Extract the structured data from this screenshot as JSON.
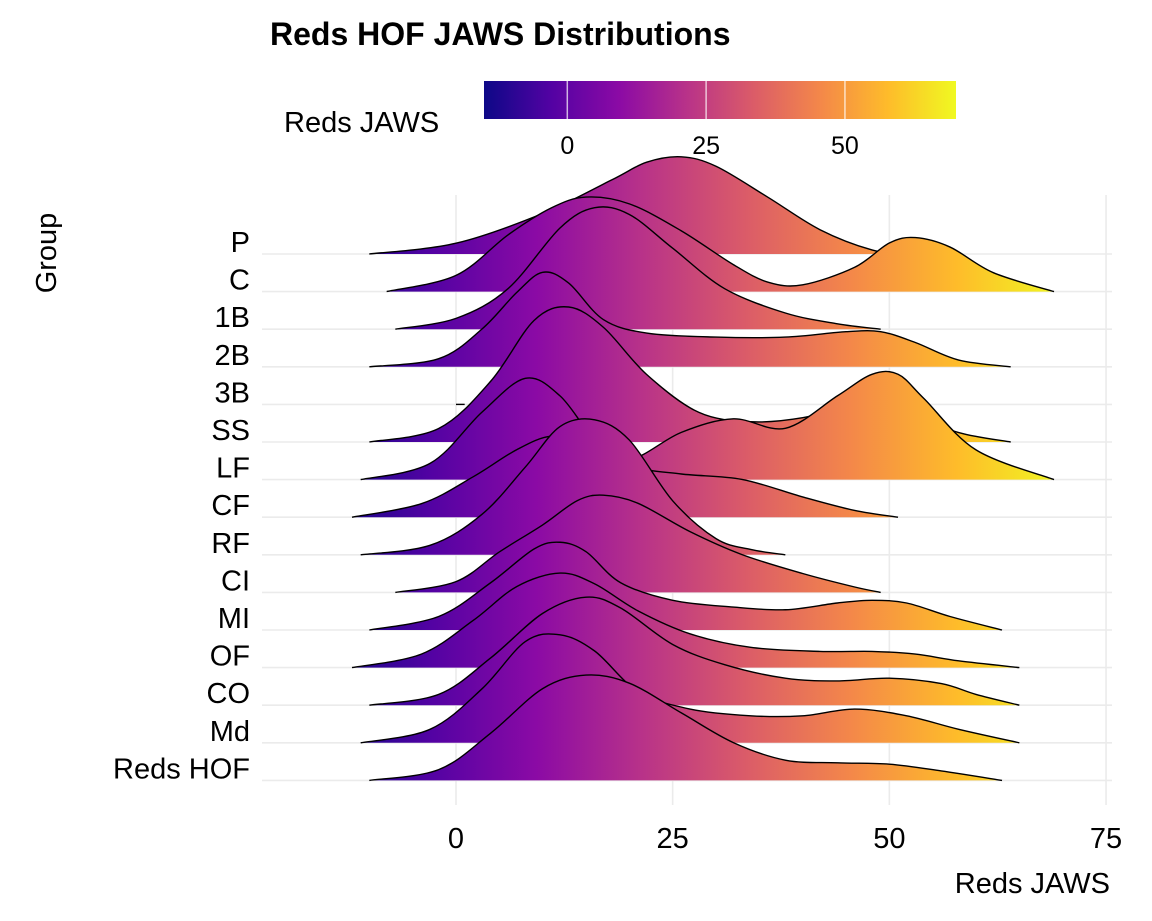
{
  "chart_data": {
    "type": "ridgeline",
    "title": "Reds HOF JAWS Distributions",
    "xlabel": "Reds JAWS",
    "ylabel": "Group",
    "xlim": [
      -23,
      75
    ],
    "x_ticks": [
      0,
      25,
      50,
      75
    ],
    "grid": true,
    "legend": {
      "title": "Reds JAWS",
      "placement": "top",
      "ticks": [
        0,
        25,
        50
      ],
      "range": [
        -15,
        70
      ],
      "colormap": "plasma",
      "colors": [
        "#0d0887",
        "#5302a3",
        "#8b0aa5",
        "#b83289",
        "#db5c68",
        "#f48849",
        "#febc2a",
        "#f0f921"
      ]
    },
    "categories": [
      "P",
      "C",
      "1B",
      "2B",
      "3B",
      "SS",
      "LF",
      "CF",
      "RF",
      "CI",
      "MI",
      "OF",
      "CO",
      "Md",
      "Reds HOF"
    ],
    "series": [
      {
        "group": "P",
        "x": [
          -10,
          0,
          10,
          18,
          22,
          26,
          30,
          36,
          42,
          48,
          52
        ],
        "density": [
          0,
          0.08,
          0.3,
          0.55,
          0.68,
          0.72,
          0.65,
          0.42,
          0.18,
          0.03,
          0
        ]
      },
      {
        "group": "C",
        "x": [
          -8,
          0,
          6,
          11,
          15,
          20,
          26,
          32,
          36,
          40,
          46,
          50,
          53,
          57,
          62,
          69
        ],
        "density": [
          0,
          0.12,
          0.42,
          0.62,
          0.7,
          0.65,
          0.45,
          0.2,
          0.07,
          0.05,
          0.18,
          0.36,
          0.4,
          0.33,
          0.14,
          0
        ]
      },
      {
        "group": "1B",
        "x": [
          -7,
          0,
          6,
          12,
          16,
          20,
          25,
          31,
          38,
          44,
          49
        ],
        "density": [
          0,
          0.08,
          0.3,
          0.75,
          0.9,
          0.85,
          0.6,
          0.3,
          0.12,
          0.04,
          0
        ]
      },
      {
        "group": "2B",
        "x": [
          -10,
          -2,
          3,
          7,
          10,
          13,
          17,
          22,
          30,
          38,
          45,
          49,
          53,
          58,
          64
        ],
        "density": [
          0,
          0.06,
          0.28,
          0.55,
          0.7,
          0.62,
          0.35,
          0.25,
          0.22,
          0.22,
          0.26,
          0.26,
          0.18,
          0.05,
          0
        ]
      },
      {
        "group": "3B",
        "x": [
          0,
          1
        ],
        "density": [
          0,
          0
        ]
      },
      {
        "group": "SS",
        "x": [
          -10,
          -2,
          4,
          9,
          13,
          17,
          22,
          28,
          34,
          40,
          46,
          49,
          52,
          58,
          64
        ],
        "density": [
          0,
          0.1,
          0.45,
          0.9,
          1.0,
          0.85,
          0.5,
          0.22,
          0.15,
          0.18,
          0.28,
          0.3,
          0.22,
          0.07,
          0
        ]
      },
      {
        "group": "LF",
        "x": [
          -11,
          -3,
          3,
          8,
          12,
          16,
          20,
          26,
          32,
          38,
          44,
          48,
          51,
          54,
          60,
          69
        ],
        "density": [
          0,
          0.12,
          0.5,
          0.75,
          0.62,
          0.3,
          0.15,
          0.35,
          0.45,
          0.38,
          0.62,
          0.78,
          0.78,
          0.6,
          0.22,
          0
        ]
      },
      {
        "group": "CF",
        "x": [
          -12,
          -4,
          2,
          7,
          11,
          15,
          20,
          26,
          33,
          40,
          46,
          51
        ],
        "density": [
          0,
          0.1,
          0.3,
          0.5,
          0.6,
          0.55,
          0.38,
          0.32,
          0.28,
          0.15,
          0.05,
          0
        ]
      },
      {
        "group": "RF",
        "x": [
          -11,
          -3,
          3,
          8,
          12,
          16,
          20,
          25,
          30,
          34,
          38
        ],
        "density": [
          0,
          0.07,
          0.3,
          0.65,
          0.95,
          1.0,
          0.85,
          0.4,
          0.12,
          0.04,
          0
        ]
      },
      {
        "group": "CI",
        "x": [
          -7,
          0,
          5,
          10,
          14,
          17,
          21,
          27,
          33,
          40,
          46,
          49
        ],
        "density": [
          0,
          0.08,
          0.3,
          0.5,
          0.68,
          0.72,
          0.66,
          0.45,
          0.28,
          0.14,
          0.04,
          0
        ]
      },
      {
        "group": "MI",
        "x": [
          -10,
          -2,
          4,
          9,
          12,
          15,
          19,
          25,
          32,
          38,
          44,
          48,
          52,
          57,
          63
        ],
        "density": [
          0,
          0.1,
          0.35,
          0.6,
          0.65,
          0.58,
          0.35,
          0.22,
          0.17,
          0.15,
          0.2,
          0.22,
          0.2,
          0.1,
          0
        ]
      },
      {
        "group": "OF",
        "x": [
          -12,
          -4,
          2,
          7,
          12,
          16,
          21,
          27,
          34,
          42,
          48,
          53,
          58,
          65
        ],
        "density": [
          0,
          0.1,
          0.35,
          0.6,
          0.7,
          0.62,
          0.42,
          0.25,
          0.15,
          0.12,
          0.12,
          0.1,
          0.05,
          0
        ]
      },
      {
        "group": "CO",
        "x": [
          -10,
          -2,
          4,
          10,
          15,
          19,
          25,
          31,
          38,
          44,
          50,
          56,
          60,
          65
        ],
        "density": [
          0,
          0.08,
          0.35,
          0.68,
          0.8,
          0.72,
          0.45,
          0.3,
          0.2,
          0.18,
          0.2,
          0.16,
          0.08,
          0
        ]
      },
      {
        "group": "Md",
        "x": [
          -11,
          -3,
          3,
          8,
          12,
          16,
          21,
          27,
          34,
          40,
          46,
          52,
          58,
          65
        ],
        "density": [
          0,
          0.1,
          0.4,
          0.75,
          0.8,
          0.68,
          0.38,
          0.25,
          0.2,
          0.2,
          0.25,
          0.2,
          0.1,
          0
        ]
      },
      {
        "group": "Reds HOF",
        "x": [
          -10,
          -2,
          4,
          10,
          15,
          20,
          26,
          32,
          38,
          44,
          50,
          56,
          63
        ],
        "density": [
          0,
          0.08,
          0.35,
          0.68,
          0.78,
          0.72,
          0.5,
          0.28,
          0.15,
          0.13,
          0.12,
          0.07,
          0
        ]
      }
    ]
  }
}
